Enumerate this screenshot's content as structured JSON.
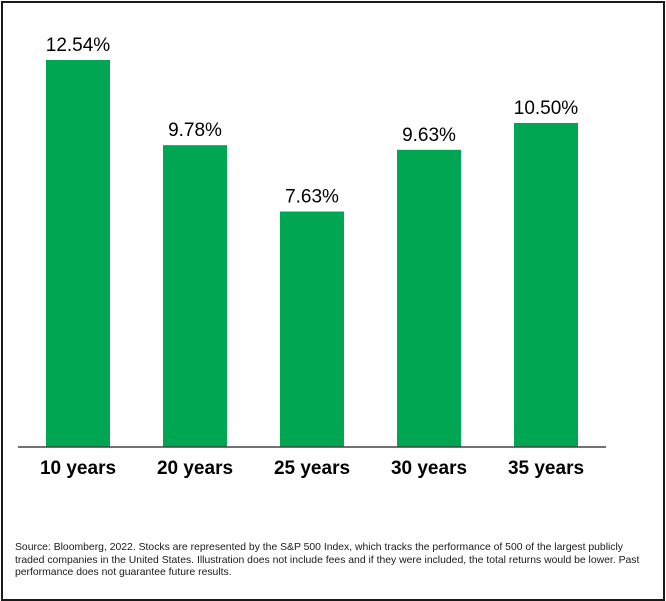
{
  "chart_data": {
    "type": "bar",
    "categories": [
      "10 years",
      "20 years",
      "25 years",
      "30 years",
      "35 years"
    ],
    "values": [
      12.54,
      9.78,
      7.63,
      9.63,
      10.5
    ],
    "value_labels": [
      "12.54%",
      "9.78%",
      "7.63%",
      "9.63%",
      "10.50%"
    ],
    "title": "",
    "xlabel": "",
    "ylabel": "",
    "ylim": [
      0,
      12.54
    ],
    "grid": false,
    "legend": "none",
    "bar_color": "#00a651"
  },
  "footnote": "Source: Bloomberg, 2022. Stocks are represented by the S&P 500 Index, which tracks the performance of 500 of the largest publicly traded companies in the United States. Illustration does not include fees and if they were included, the total returns would be lower. Past performance does not guarantee future results."
}
